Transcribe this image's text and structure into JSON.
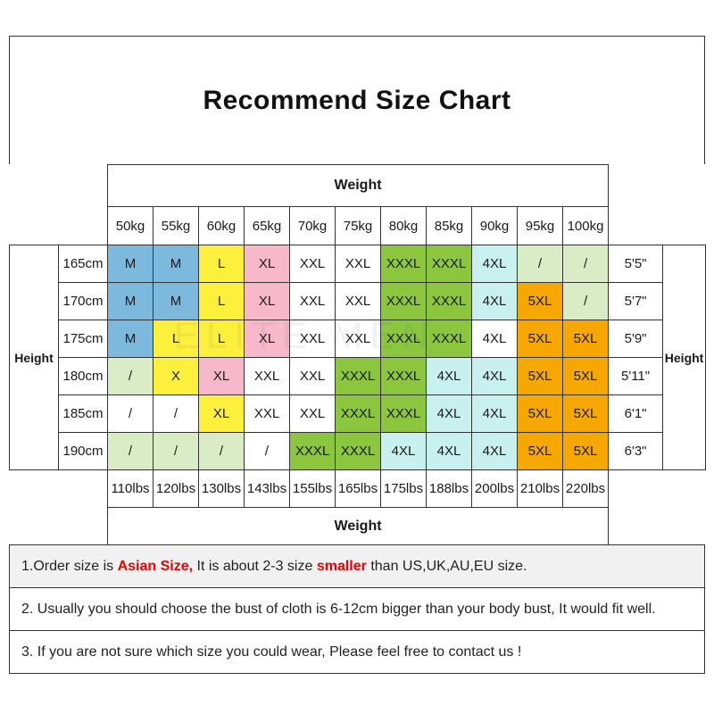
{
  "title": "Recommend Size Chart",
  "watermark": "ELITE MEN",
  "chart_data": {
    "type": "table",
    "top_axis_label": "Weight",
    "bottom_axis_label": "Weight",
    "left_axis_label": "Height",
    "right_axis_label": "Height",
    "weights_kg": [
      "50kg",
      "55kg",
      "60kg",
      "65kg",
      "70kg",
      "75kg",
      "80kg",
      "85kg",
      "90kg",
      "95kg",
      "100kg"
    ],
    "weights_lbs": [
      "110lbs",
      "120lbs",
      "130lbs",
      "143lbs",
      "155lbs",
      "165lbs",
      "175lbs",
      "188lbs",
      "200lbs",
      "210lbs",
      "220lbs"
    ],
    "heights_cm": [
      "165cm",
      "170cm",
      "175cm",
      "180cm",
      "185cm",
      "190cm"
    ],
    "heights_ft": [
      "5'5\"",
      "5'7\"",
      "5'9\"",
      "5'11\"",
      "6'1\"",
      "6'3\""
    ],
    "sizes": [
      [
        "M",
        "M",
        "L",
        "XL",
        "XXL",
        "XXL",
        "XXXL",
        "XXXL",
        "4XL",
        "/",
        "/"
      ],
      [
        "M",
        "M",
        "L",
        "XL",
        "XXL",
        "XXL",
        "XXXL",
        "XXXL",
        "4XL",
        "5XL",
        "/"
      ],
      [
        "M",
        "L",
        "L",
        "XL",
        "XXL",
        "XXL",
        "XXXL",
        "XXXL",
        "4XL",
        "5XL",
        "5XL"
      ],
      [
        "/",
        "X",
        "XL",
        "XXL",
        "XXL",
        "XXXL",
        "XXXL",
        "4XL",
        "4XL",
        "5XL",
        "5XL"
      ],
      [
        "/",
        "/",
        "XL",
        "XXL",
        "XXL",
        "XXXL",
        "XXXL",
        "4XL",
        "4XL",
        "5XL",
        "5XL"
      ],
      [
        "/",
        "/",
        "/",
        "/",
        "XXXL",
        "XXXL",
        "4XL",
        "4XL",
        "4XL",
        "5XL",
        "5XL"
      ]
    ],
    "cell_colors": [
      [
        "blue",
        "blue",
        "yellow",
        "pink",
        "white",
        "white",
        "green",
        "green",
        "cyan",
        "palegreen",
        "palegreen"
      ],
      [
        "blue",
        "blue",
        "yellow",
        "pink",
        "white",
        "white",
        "green",
        "green",
        "cyan",
        "orange",
        "palegreen"
      ],
      [
        "blue",
        "yellow",
        "yellow",
        "pink",
        "white",
        "white",
        "green",
        "green",
        "white",
        "orange",
        "orange"
      ],
      [
        "palegreen",
        "yellow",
        "pink",
        "white",
        "white",
        "green",
        "green",
        "cyan",
        "cyan",
        "orange",
        "orange"
      ],
      [
        "white",
        "white",
        "yellow",
        "white",
        "white",
        "green",
        "green",
        "cyan",
        "cyan",
        "orange",
        "orange"
      ],
      [
        "palegreen",
        "palegreen",
        "palegreen",
        "white",
        "green",
        "green",
        "cyan",
        "cyan",
        "cyan",
        "orange",
        "orange"
      ]
    ],
    "palette": {
      "blue": "#7db8dd",
      "yellow": "#fdf03c",
      "pink": "#f7b8ca",
      "green": "#8cc63f",
      "cyan": "#c7f0ee",
      "orange": "#f6a801",
      "palegreen": "#d9ecc6",
      "white": "#ffffff",
      "note_highlight": "#ea0000",
      "note_shaded_bg": "#f1f1f1"
    }
  },
  "notes": [
    {
      "segments": [
        {
          "text": "1.Order size is ",
          "red": false
        },
        {
          "text": "Asian Size,",
          "red": true
        },
        {
          "text": " It is about 2-3 size ",
          "red": false
        },
        {
          "text": "smaller",
          "red": true
        },
        {
          "text": " than US,UK,AU,EU size.",
          "red": false
        }
      ]
    },
    {
      "segments": [
        {
          "text": "2. Usually you should choose the bust of cloth is 6-12cm bigger than your body bust, It would fit well.",
          "red": false
        }
      ]
    },
    {
      "segments": [
        {
          "text": "3. If you are not sure which size you could wear, Please feel free to contact us !",
          "red": false
        }
      ]
    }
  ]
}
